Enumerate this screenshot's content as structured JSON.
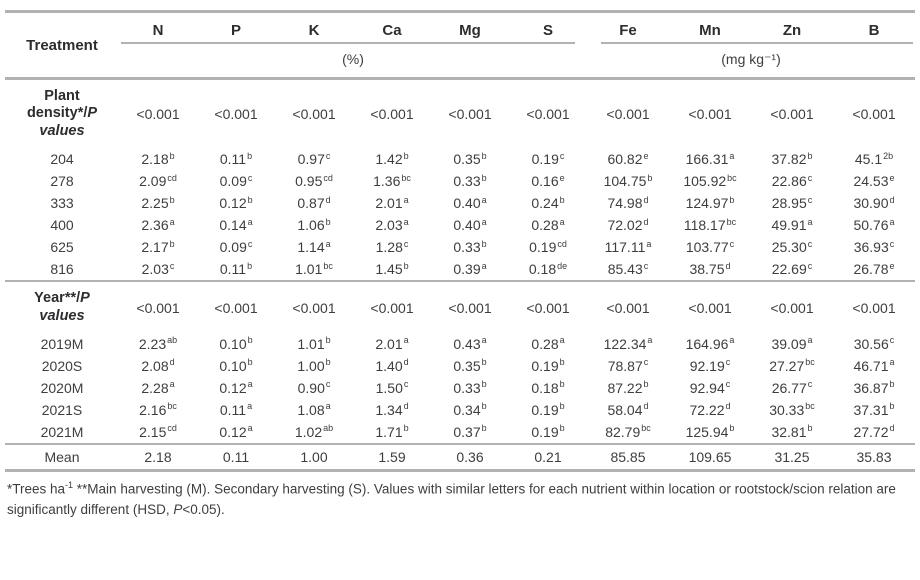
{
  "colors": {
    "line": "#b2b2b4",
    "text": "#3e3e41",
    "header_text": "#2d2d30"
  },
  "table": {
    "treatment_header": "Treatment",
    "nutrients": [
      "N",
      "P",
      "K",
      "Ca",
      "Mg",
      "S",
      "Fe",
      "Mn",
      "Zn",
      "B"
    ],
    "unit_groups": [
      {
        "label": "(%)",
        "span": 6
      },
      {
        "label": "(mg kg⁻¹)",
        "span": 4
      }
    ],
    "sections": [
      {
        "label_plain": "Plant density*/",
        "label_italic": "P values",
        "p_values": [
          "<0.001",
          "<0.001",
          "<0.001",
          "<0.001",
          "<0.001",
          "<0.001",
          "<0.001",
          "<0.001",
          "<0.001",
          "<0.001"
        ],
        "rows": [
          {
            "treatment": "204",
            "cells": [
              "2.18^b",
              "0.11^b",
              "0.97^c",
              "1.42^b",
              "0.35^b",
              "0.19^c",
              "60.82^e",
              "166.31^a",
              "37.82^b",
              "45.1^2b"
            ]
          },
          {
            "treatment": "278",
            "cells": [
              "2.09^cd",
              "0.09^c",
              "0.95^cd",
              "1.36^bc",
              "0.33^b",
              "0.16^e",
              "104.75^b",
              "105.92^bc",
              "22.86^c",
              "24.53^e"
            ]
          },
          {
            "treatment": "333",
            "cells": [
              "2.25^b",
              "0.12^b",
              "0.87^d",
              "2.01^a",
              "0.40^a",
              "0.24^b",
              "74.98^d",
              "124.97^b",
              "28.95^c",
              "30.90^d"
            ]
          },
          {
            "treatment": "400",
            "cells": [
              "2.36^a",
              "0.14^a",
              "1.06^b",
              "2.03^a",
              "0.40^a",
              "0.28^a",
              "72.02^d",
              "118.17^bc",
              "49.91^a",
              "50.76^a"
            ]
          },
          {
            "treatment": "625",
            "cells": [
              "2.17^b",
              "0.09^c",
              "1.14^a",
              "1.28^c",
              "0.33^b",
              "0.19^cd",
              "117.11^a",
              "103.77^c",
              "25.30^c",
              "36.93^c"
            ]
          },
          {
            "treatment": "816",
            "cells": [
              "2.03^c",
              "0.11^b",
              "1.01^bc",
              "1.45^b",
              "0.39^a",
              "0.18^de",
              "85.43^c",
              "38.75^d",
              "22.69^c",
              "26.78^e"
            ]
          }
        ]
      },
      {
        "label_plain": "Year**/",
        "label_italic": "P values",
        "p_values": [
          "<0.001",
          "<0.001",
          "<0.001",
          "<0.001",
          "<0.001",
          "<0.001",
          "<0.001",
          "<0.001",
          "<0.001",
          "<0.001"
        ],
        "rows": [
          {
            "treatment": "2019M",
            "cells": [
              "2.23^ab",
              "0.10^b",
              "1.01^b",
              "2.01^a",
              "0.43^a",
              "0.28^a",
              "122.34^a",
              "164.96^a",
              "39.09^a",
              "30.56^c"
            ]
          },
          {
            "treatment": "2020S",
            "cells": [
              "2.08^d",
              "0.10^b",
              "1.00^b",
              "1.40^d",
              "0.35^b",
              "0.19^b",
              "78.87^c",
              "92.19^c",
              "27.27^bc",
              "46.71^a"
            ]
          },
          {
            "treatment": "2020M",
            "cells": [
              "2.28^a",
              "0.12^a",
              "0.90^c",
              "1.50^c",
              "0.33^b",
              "0.18^b",
              "87.22^b",
              "92.94^c",
              "26.77^c",
              "36.87^b"
            ]
          },
          {
            "treatment": "2021S",
            "cells": [
              "2.16^bc",
              "0.11^a",
              "1.08^a",
              "1.34^d",
              "0.34^b",
              "0.19^b",
              "58.04^d",
              "72.22^d",
              "30.33^bc",
              "37.31^b"
            ]
          },
          {
            "treatment": "2021M",
            "cells": [
              "2.15^cd",
              "0.12^a",
              "1.02^ab",
              "1.71^b",
              "0.37^b",
              "0.19^b",
              "82.79^bc",
              "125.94^b",
              "32.81^b",
              "27.72^d"
            ]
          }
        ]
      }
    ],
    "mean_row": {
      "label": "Mean",
      "cells": [
        "2.18",
        "0.11",
        "1.00",
        "1.59",
        "0.36",
        "0.21",
        "85.85",
        "109.65",
        "31.25",
        "35.83"
      ]
    }
  },
  "footnote": {
    "parts": [
      {
        "t": "*Trees ha"
      },
      {
        "t": "-1",
        "sup": true
      },
      {
        "t": " **Main harvesting (M). Secondary harvesting (S). Values with similar letters for each nutrient within location or rootstock/scion relation are significantly different (HSD, "
      },
      {
        "t": "P",
        "italic": true
      },
      {
        "t": "<0.05)."
      }
    ]
  }
}
